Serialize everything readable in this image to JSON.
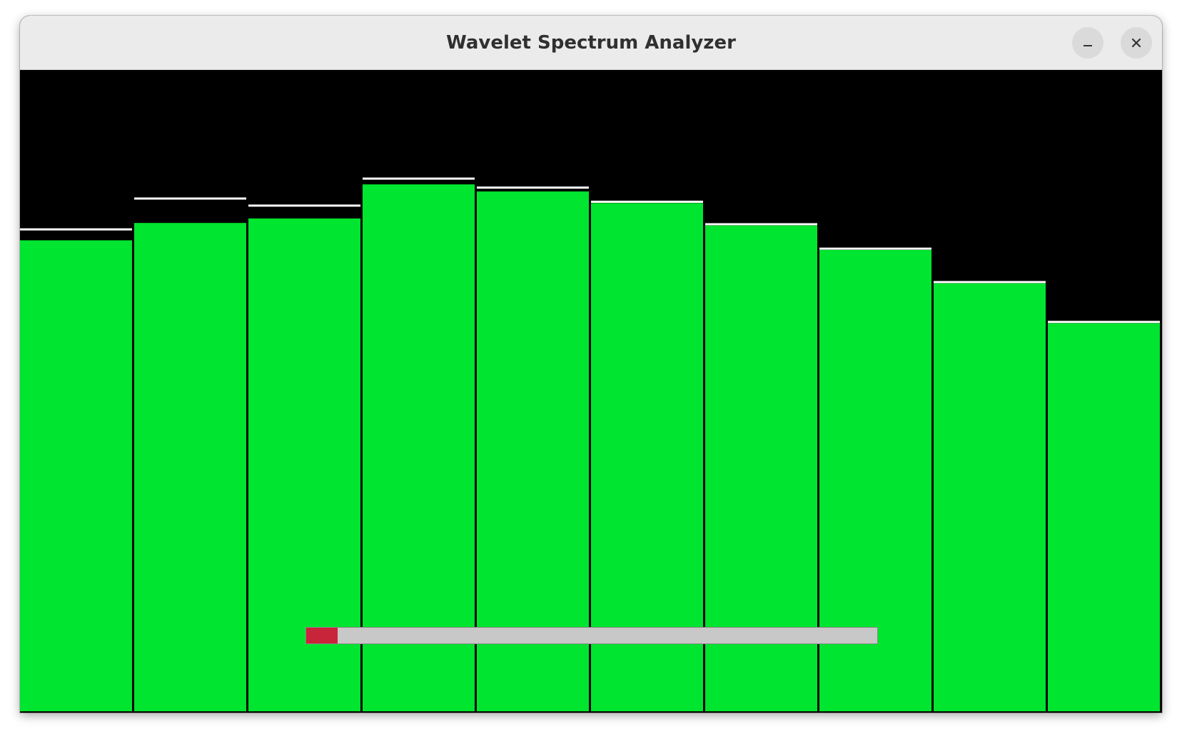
{
  "window": {
    "title": "Wavelet Spectrum Analyzer",
    "controls": {
      "minimize_icon": "minimize-icon",
      "close_icon": "close-icon"
    }
  },
  "colors": {
    "background": "#000000",
    "bar": "#00e52f",
    "peak": "#ffffff",
    "progress_track": "#c8c8c8",
    "progress_fill": "#c8243a"
  },
  "chart_data": {
    "type": "bar",
    "categories": [
      "",
      "",
      "",
      "",
      "",
      "",
      "",
      "",
      "",
      ""
    ],
    "values": [
      0.735,
      0.762,
      0.769,
      0.822,
      0.811,
      0.793,
      0.758,
      0.72,
      0.668,
      0.606
    ],
    "peaks": [
      0.752,
      0.8,
      0.789,
      0.831,
      0.817,
      0.795,
      0.76,
      0.722,
      0.67,
      0.608
    ],
    "ylim": [
      0,
      1
    ],
    "grid": false,
    "legend": "none"
  },
  "progress": {
    "value": 0.055
  }
}
